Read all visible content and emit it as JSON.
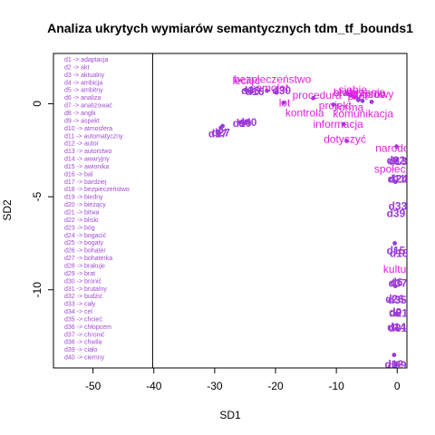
{
  "chart_data": {
    "type": "scatter",
    "title": "Analiza ukrytych wymiarów semantycznych tdm_tf_bounds1",
    "xlabel": "SD1",
    "ylabel": "SD2",
    "xlim": [
      -56.5,
      1.6
    ],
    "ylim": [
      -14.2,
      2.7
    ],
    "xticks": [
      -50,
      -40,
      -30,
      -20,
      -10,
      0
    ],
    "yticks": [
      -10,
      -5,
      0
    ],
    "legend_divider_x": -40.2,
    "colors": {
      "terms": "#e020e0",
      "documents": "#9b3cd6",
      "legend": "#a04bd0",
      "axes": "#000000"
    },
    "legend_entries": [
      "d1 -> adaptacja",
      "d2 -> akt",
      "d3 -> aktualny",
      "d4 -> ambicja",
      "d5 -> ambitny",
      "d6 -> analiza",
      "d7 -> analizować",
      "d8 -> anglii",
      "d9 -> aspekt",
      "d10 -> atmosfera",
      "d11 -> automatyczny",
      "d12 -> autor",
      "d13 -> autorstwo",
      "d14 -> awaryjny",
      "d15 -> awionika",
      "d16 -> bal",
      "d17 -> bardziej",
      "d18 -> bezpieczeństwo",
      "d19 -> biedny",
      "d20 -> bieżący",
      "d21 -> bitwa",
      "d22 -> bliski",
      "d23 -> bóg",
      "d24 -> bogacić",
      "d25 -> bogaty",
      "d26 -> bohater",
      "d27 -> bohaterka",
      "d28 -> brakuje",
      "d29 -> brat",
      "d30 -> bronić",
      "d31 -> brutalny",
      "d32 -> budżić",
      "d33 -> cały",
      "d34 -> cel",
      "d35 -> chcieć",
      "d36 -> chłopcem",
      "d37 -> chronić",
      "d38 -> chwila",
      "d39 -> ciało",
      "d40 -> ciemny"
    ],
    "terms": [
      {
        "label": "bezpieczeństwo",
        "x": -20.5,
        "y": 1.3
      },
      {
        "label": "samolot",
        "x": -21.0,
        "y": 0.85
      },
      {
        "label": "lecieć",
        "x": -24.8,
        "y": 1.25
      },
      {
        "label": "siebie",
        "x": -7.3,
        "y": 0.75
      },
      {
        "label": "stworzenie",
        "x": -6.2,
        "y": 0.6
      },
      {
        "label": "sposób",
        "x": -4.8,
        "y": 0.5
      },
      {
        "label": "brała",
        "x": -8.5,
        "y": 0.6
      },
      {
        "label": "procedura",
        "x": -13.2,
        "y": 0.45
      },
      {
        "label": "kolorowy",
        "x": -4.1,
        "y": 0.5
      },
      {
        "label": "lot",
        "x": -18.5,
        "y": 0.05
      },
      {
        "label": "pilot",
        "x": -6.5,
        "y": 0.4
      },
      {
        "label": "projekt",
        "x": -10.2,
        "y": -0.1
      },
      {
        "label": "forma",
        "x": -7.8,
        "y": -0.2
      },
      {
        "label": "komunikacja",
        "x": -5.6,
        "y": -0.55
      },
      {
        "label": "kontrola",
        "x": -15.2,
        "y": -0.5
      },
      {
        "label": "informacja",
        "x": -9.7,
        "y": -1.1
      },
      {
        "label": "dotyczyć",
        "x": -8.6,
        "y": -1.9
      },
      {
        "label": "narodowy",
        "x": 0.3,
        "y": -2.4
      },
      {
        "label": "społeczny",
        "x": 0.2,
        "y": -3.5
      },
      {
        "label": "kultura",
        "x": 0.4,
        "y": -8.9
      }
    ],
    "documents": [
      {
        "label": "d17",
        "x": -29.5,
        "y": -1.6
      },
      {
        "label": "d27",
        "x": -29.0,
        "y": -1.55
      },
      {
        "label": "d40",
        "x": -24.6,
        "y": -1.0
      },
      {
        "label": "d10",
        "x": -25.5,
        "y": -1.05
      },
      {
        "label": "d36",
        "x": -24.1,
        "y": 0.7
      },
      {
        "label": "d16",
        "x": -23.4,
        "y": 0.65
      },
      {
        "label": "d30",
        "x": -19.0,
        "y": 0.7
      },
      {
        "label": "d22",
        "x": -0.2,
        "y": -3.05
      },
      {
        "label": "d13",
        "x": 0.1,
        "y": -3.1
      },
      {
        "label": "d11",
        "x": -0.1,
        "y": -4.05
      },
      {
        "label": "d24",
        "x": 0.2,
        "y": -4.05
      },
      {
        "label": "d33",
        "x": 0.1,
        "y": -5.5
      },
      {
        "label": "d39",
        "x": -0.2,
        "y": -5.9
      },
      {
        "label": "d15",
        "x": -0.2,
        "y": -7.9
      },
      {
        "label": "d18",
        "x": 0.3,
        "y": -8.05
      },
      {
        "label": "d6",
        "x": -0.1,
        "y": -9.6
      },
      {
        "label": "d37",
        "x": 0.1,
        "y": -9.65
      },
      {
        "label": "d26",
        "x": -0.4,
        "y": -10.5
      },
      {
        "label": "d35",
        "x": 0.0,
        "y": -10.55
      },
      {
        "label": "d9",
        "x": -0.3,
        "y": -11.2
      },
      {
        "label": "d21",
        "x": 0.2,
        "y": -11.25
      },
      {
        "label": "d14",
        "x": -0.1,
        "y": -12.0
      },
      {
        "label": "d31",
        "x": 0.1,
        "y": -12.05
      },
      {
        "label": "d12",
        "x": -0.5,
        "y": -14.0
      },
      {
        "label": "d29",
        "x": 0.0,
        "y": -14.05
      }
    ],
    "points": [
      {
        "x": -29.3,
        "y": -1.55
      },
      {
        "x": -29.0,
        "y": -1.3
      },
      {
        "x": -28.7,
        "y": -1.2
      },
      {
        "x": -25.8,
        "y": -1.0
      },
      {
        "x": -25.2,
        "y": -1.05
      },
      {
        "x": -24.8,
        "y": -0.95
      },
      {
        "x": -24.9,
        "y": 0.75
      },
      {
        "x": -24.6,
        "y": 0.7
      },
      {
        "x": -23.9,
        "y": 0.65
      },
      {
        "x": -21.4,
        "y": 0.7
      },
      {
        "x": -19.8,
        "y": 0.6
      },
      {
        "x": -18.7,
        "y": 0.05
      },
      {
        "x": -13.8,
        "y": 0.3
      },
      {
        "x": -10.5,
        "y": -0.05
      },
      {
        "x": -8.8,
        "y": -1.1
      },
      {
        "x": -8.2,
        "y": 0.55
      },
      {
        "x": -7.7,
        "y": 0.45
      },
      {
        "x": -7.0,
        "y": 0.35
      },
      {
        "x": -6.4,
        "y": 0.2
      },
      {
        "x": -5.7,
        "y": 0.15
      },
      {
        "x": -4.2,
        "y": 0.1
      },
      {
        "x": -8.3,
        "y": -2.0
      },
      {
        "x": -0.1,
        "y": -2.3
      },
      {
        "x": -0.2,
        "y": -3.05
      },
      {
        "x": -0.3,
        "y": -4.2
      },
      {
        "x": -0.4,
        "y": -7.5
      },
      {
        "x": -0.3,
        "y": -9.8
      },
      {
        "x": -0.2,
        "y": -11.3
      },
      {
        "x": -0.1,
        "y": -12.1
      },
      {
        "x": -0.5,
        "y": -13.5
      },
      {
        "x": -0.2,
        "y": -14.0
      }
    ]
  }
}
